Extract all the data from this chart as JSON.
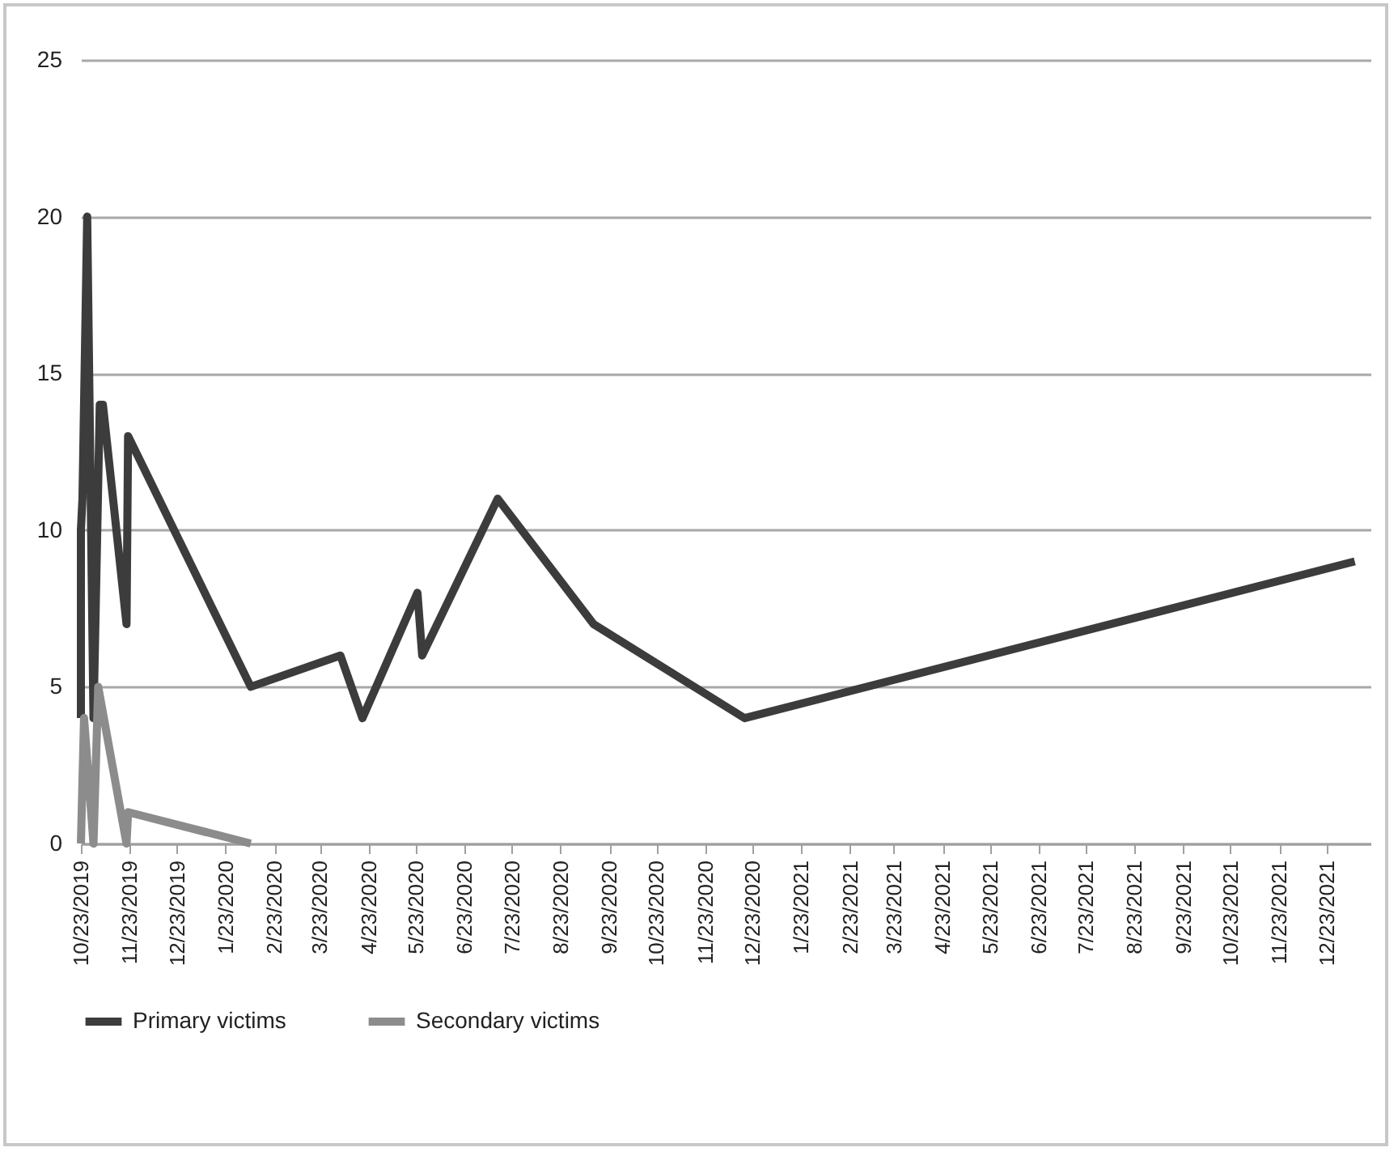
{
  "chart_data": {
    "type": "line",
    "series": [
      {
        "name": "Primary victims",
        "color": "#3c3c3c",
        "x": [
          "2019-10-23",
          "2019-10-23",
          "2019-10-24",
          "2019-10-27",
          "2019-10-31",
          "2019-11-04",
          "2019-11-06",
          "2019-11-21",
          "2019-11-22",
          "2020-02-08",
          "2020-04-05",
          "2020-04-19",
          "2020-05-24",
          "2020-05-27",
          "2020-07-14",
          "2020-09-13",
          "2020-12-18",
          "2022-01-10"
        ],
        "values": [
          4,
          10,
          11,
          20,
          4,
          14,
          14,
          7,
          13,
          5,
          6,
          4,
          8,
          6,
          11,
          7,
          4,
          9
        ]
      },
      {
        "name": "Secondary victims",
        "color": "#8c8c8c",
        "x": [
          "2019-10-23",
          "2019-10-25",
          "2019-10-31",
          "2019-11-03",
          "2019-11-21",
          "2019-11-22",
          "2020-02-08"
        ],
        "values": [
          0,
          4,
          0,
          5,
          0,
          1,
          0
        ]
      }
    ],
    "xlim": [
      "2019-10-23",
      "2022-01-20"
    ],
    "xticks": [
      {
        "value": "2019-10-23",
        "label": "10/23/2019"
      },
      {
        "value": "2019-11-23",
        "label": "11/23/2019"
      },
      {
        "value": "2019-12-23",
        "label": "12/23/2019"
      },
      {
        "value": "2020-01-23",
        "label": "1/23/2020"
      },
      {
        "value": "2020-02-23",
        "label": "2/23/2020"
      },
      {
        "value": "2020-03-23",
        "label": "3/23/2020"
      },
      {
        "value": "2020-04-23",
        "label": "4/23/2020"
      },
      {
        "value": "2020-05-23",
        "label": "5/23/2020"
      },
      {
        "value": "2020-06-23",
        "label": "6/23/2020"
      },
      {
        "value": "2020-07-23",
        "label": "7/23/2020"
      },
      {
        "value": "2020-08-23",
        "label": "8/23/2020"
      },
      {
        "value": "2020-09-23",
        "label": "9/23/2020"
      },
      {
        "value": "2020-10-23",
        "label": "10/23/2020"
      },
      {
        "value": "2020-11-23",
        "label": "11/23/2020"
      },
      {
        "value": "2020-12-23",
        "label": "12/23/2020"
      },
      {
        "value": "2021-01-23",
        "label": "1/23/2021"
      },
      {
        "value": "2021-02-23",
        "label": "2/23/2021"
      },
      {
        "value": "2021-03-23",
        "label": "3/23/2021"
      },
      {
        "value": "2021-04-23",
        "label": "4/23/2021"
      },
      {
        "value": "2021-05-23",
        "label": "5/23/2021"
      },
      {
        "value": "2021-06-23",
        "label": "6/23/2021"
      },
      {
        "value": "2021-07-23",
        "label": "7/23/2021"
      },
      {
        "value": "2021-08-23",
        "label": "8/23/2021"
      },
      {
        "value": "2021-09-23",
        "label": "9/23/2021"
      },
      {
        "value": "2021-10-23",
        "label": "10/23/2021"
      },
      {
        "value": "2021-11-23",
        "label": "11/23/2021"
      },
      {
        "value": "2021-12-23",
        "label": "12/23/2021"
      }
    ],
    "ylim": [
      0,
      25
    ],
    "yticks": [
      0,
      5,
      10,
      15,
      20,
      25
    ],
    "grid": "y",
    "legend": "bottom",
    "marker": "none",
    "line_style": "solid"
  }
}
